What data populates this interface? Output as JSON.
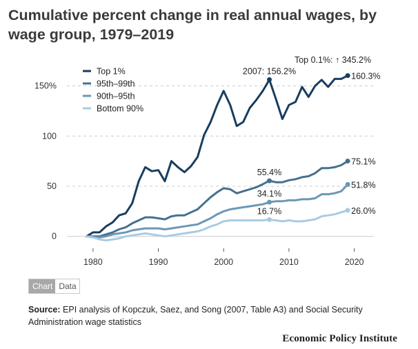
{
  "title": "Cumulative percent change in real annual wages, by wage group, 1979–2019",
  "tabs": {
    "chart_label": "Chart",
    "data_label": "Data"
  },
  "source": {
    "label": "Source:",
    "text": "EPI analysis of Kopczuk, Saez, and Song (2007, Table A3) and Social Security Administration wage statistics"
  },
  "brand": "Economic Policy Institute",
  "colors": {
    "top1": "#183d5f",
    "p95_99": "#44708f",
    "p90_95": "#6b97b6",
    "bottom90": "#a9cbe3",
    "grid": "#cccccc",
    "text": "#333333"
  },
  "chart_data": {
    "type": "line",
    "xlim": [
      1976,
      2023
    ],
    "ylim": [
      -5,
      160
    ],
    "x_ticks": [
      1980,
      1990,
      2000,
      2010,
      2020
    ],
    "y_ticks": [
      {
        "value": 0,
        "label": "0"
      },
      {
        "value": 50,
        "label": "50"
      },
      {
        "value": 100,
        "label": "100"
      },
      {
        "value": 150,
        "label": "150%"
      }
    ],
    "grid": "horizontal dashed",
    "legend_position": "top-left",
    "x": [
      1979,
      1980,
      1981,
      1982,
      1983,
      1984,
      1985,
      1986,
      1987,
      1988,
      1989,
      1990,
      1991,
      1992,
      1993,
      1994,
      1995,
      1996,
      1997,
      1998,
      1999,
      2000,
      2001,
      2002,
      2003,
      2004,
      2005,
      2006,
      2007,
      2008,
      2009,
      2010,
      2011,
      2012,
      2013,
      2014,
      2015,
      2016,
      2017,
      2018,
      2019
    ],
    "series": [
      {
        "name": "Top 1%",
        "color_key": "top1",
        "values": [
          0,
          4,
          4,
          10,
          14,
          21,
          23,
          33,
          55,
          69,
          65,
          66,
          55,
          75,
          69,
          64,
          70,
          79,
          101,
          114,
          131,
          145,
          131,
          110,
          114,
          128,
          136,
          145,
          156.2,
          137,
          117,
          131,
          134,
          149,
          139,
          150,
          156,
          149,
          157,
          157,
          160.3
        ]
      },
      {
        "name": "95th–99th",
        "color_key": "p95_99",
        "values": [
          0,
          0,
          0,
          2,
          4,
          7,
          9,
          13,
          16,
          19,
          19,
          18,
          17,
          20,
          21,
          21,
          24,
          27,
          33,
          39,
          44,
          48,
          47,
          43,
          45,
          47,
          49,
          52,
          55.4,
          54,
          54,
          56,
          57,
          59,
          60,
          63,
          68,
          68,
          69,
          71,
          75.1
        ]
      },
      {
        "name": "90th–95th",
        "color_key": "p90_95",
        "values": [
          0,
          -1,
          -1,
          0,
          2,
          3,
          4,
          6,
          7,
          8,
          8,
          8,
          7,
          8,
          9,
          10,
          11,
          12,
          15,
          18,
          22,
          25,
          27,
          28,
          29,
          30,
          31,
          32,
          34.1,
          35,
          35,
          36,
          36,
          37,
          37,
          38,
          42,
          42,
          43,
          45,
          51.8
        ]
      },
      {
        "name": "Bottom 90%",
        "color_key": "bottom90",
        "values": [
          0,
          -1,
          -3,
          -4,
          -3,
          -2,
          0,
          1,
          2,
          3,
          2,
          1,
          0,
          1,
          2,
          3,
          4,
          5,
          7,
          10,
          12,
          15,
          16,
          16,
          16,
          16,
          16,
          16,
          16.7,
          16,
          15,
          16,
          15,
          15,
          16,
          17,
          20,
          21,
          22,
          24,
          26.0
        ]
      }
    ],
    "end_labels": [
      "160.3%",
      "75.1%",
      "51.8%",
      "26.0%"
    ],
    "annotations": [
      {
        "text": "2007: 156.2%",
        "x": 2007,
        "y": 156.2,
        "series": 0
      },
      {
        "text": "55.4%",
        "x": 2007,
        "y": 55.4,
        "series": 1
      },
      {
        "text": "34.1%",
        "x": 2007,
        "y": 34.1,
        "series": 2
      },
      {
        "text": "16.7%",
        "x": 2007,
        "y": 16.7,
        "series": 3
      }
    ],
    "top_note": "Top 0.1%: ↑ 345.2%"
  }
}
